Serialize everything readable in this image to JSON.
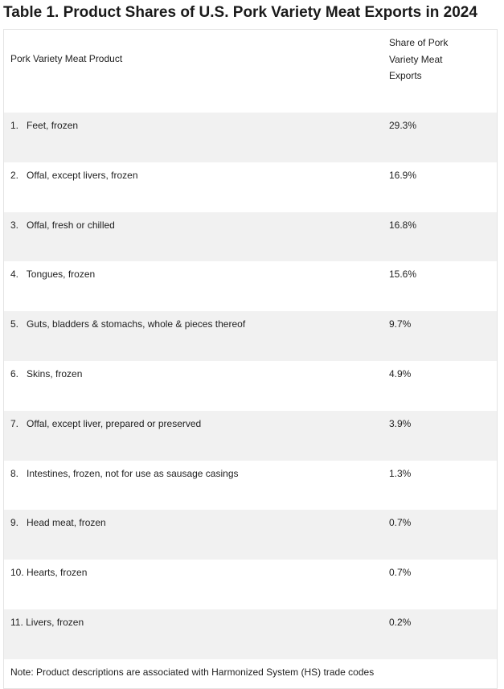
{
  "title": "Table 1. Product Shares of U.S. Pork Variety Meat Exports in 2024",
  "table": {
    "headers": {
      "product": "Pork Variety Meat Product",
      "share_lines": [
        "Share of Pork",
        "Variety Meat",
        "Exports"
      ]
    },
    "rows": [
      {
        "product": "1.   Feet, frozen",
        "share": "29.3%"
      },
      {
        "product": "2.   Offal, except livers, frozen",
        "share": "16.9%"
      },
      {
        "product": "3.   Offal, fresh or chilled",
        "share": "16.8%"
      },
      {
        "product": "4.   Tongues, frozen",
        "share": "15.6%"
      },
      {
        "product": "5.   Guts, bladders & stomachs, whole & pieces thereof",
        "share": "9.7%"
      },
      {
        "product": "6.   Skins, frozen",
        "share": "4.9%"
      },
      {
        "product": "7.   Offal, except liver, prepared or preserved",
        "share": "3.9%"
      },
      {
        "product": "8.   Intestines, frozen, not for use as sausage casings",
        "share": "1.3%"
      },
      {
        "product": "9.   Head meat, frozen",
        "share": "0.7%"
      },
      {
        "product": "10. Hearts, frozen",
        "share": "0.7%"
      },
      {
        "product": "11. Livers, frozen",
        "share": "0.2%"
      }
    ],
    "note": "Note: Product descriptions are associated with Harmonized System (HS) trade codes"
  }
}
